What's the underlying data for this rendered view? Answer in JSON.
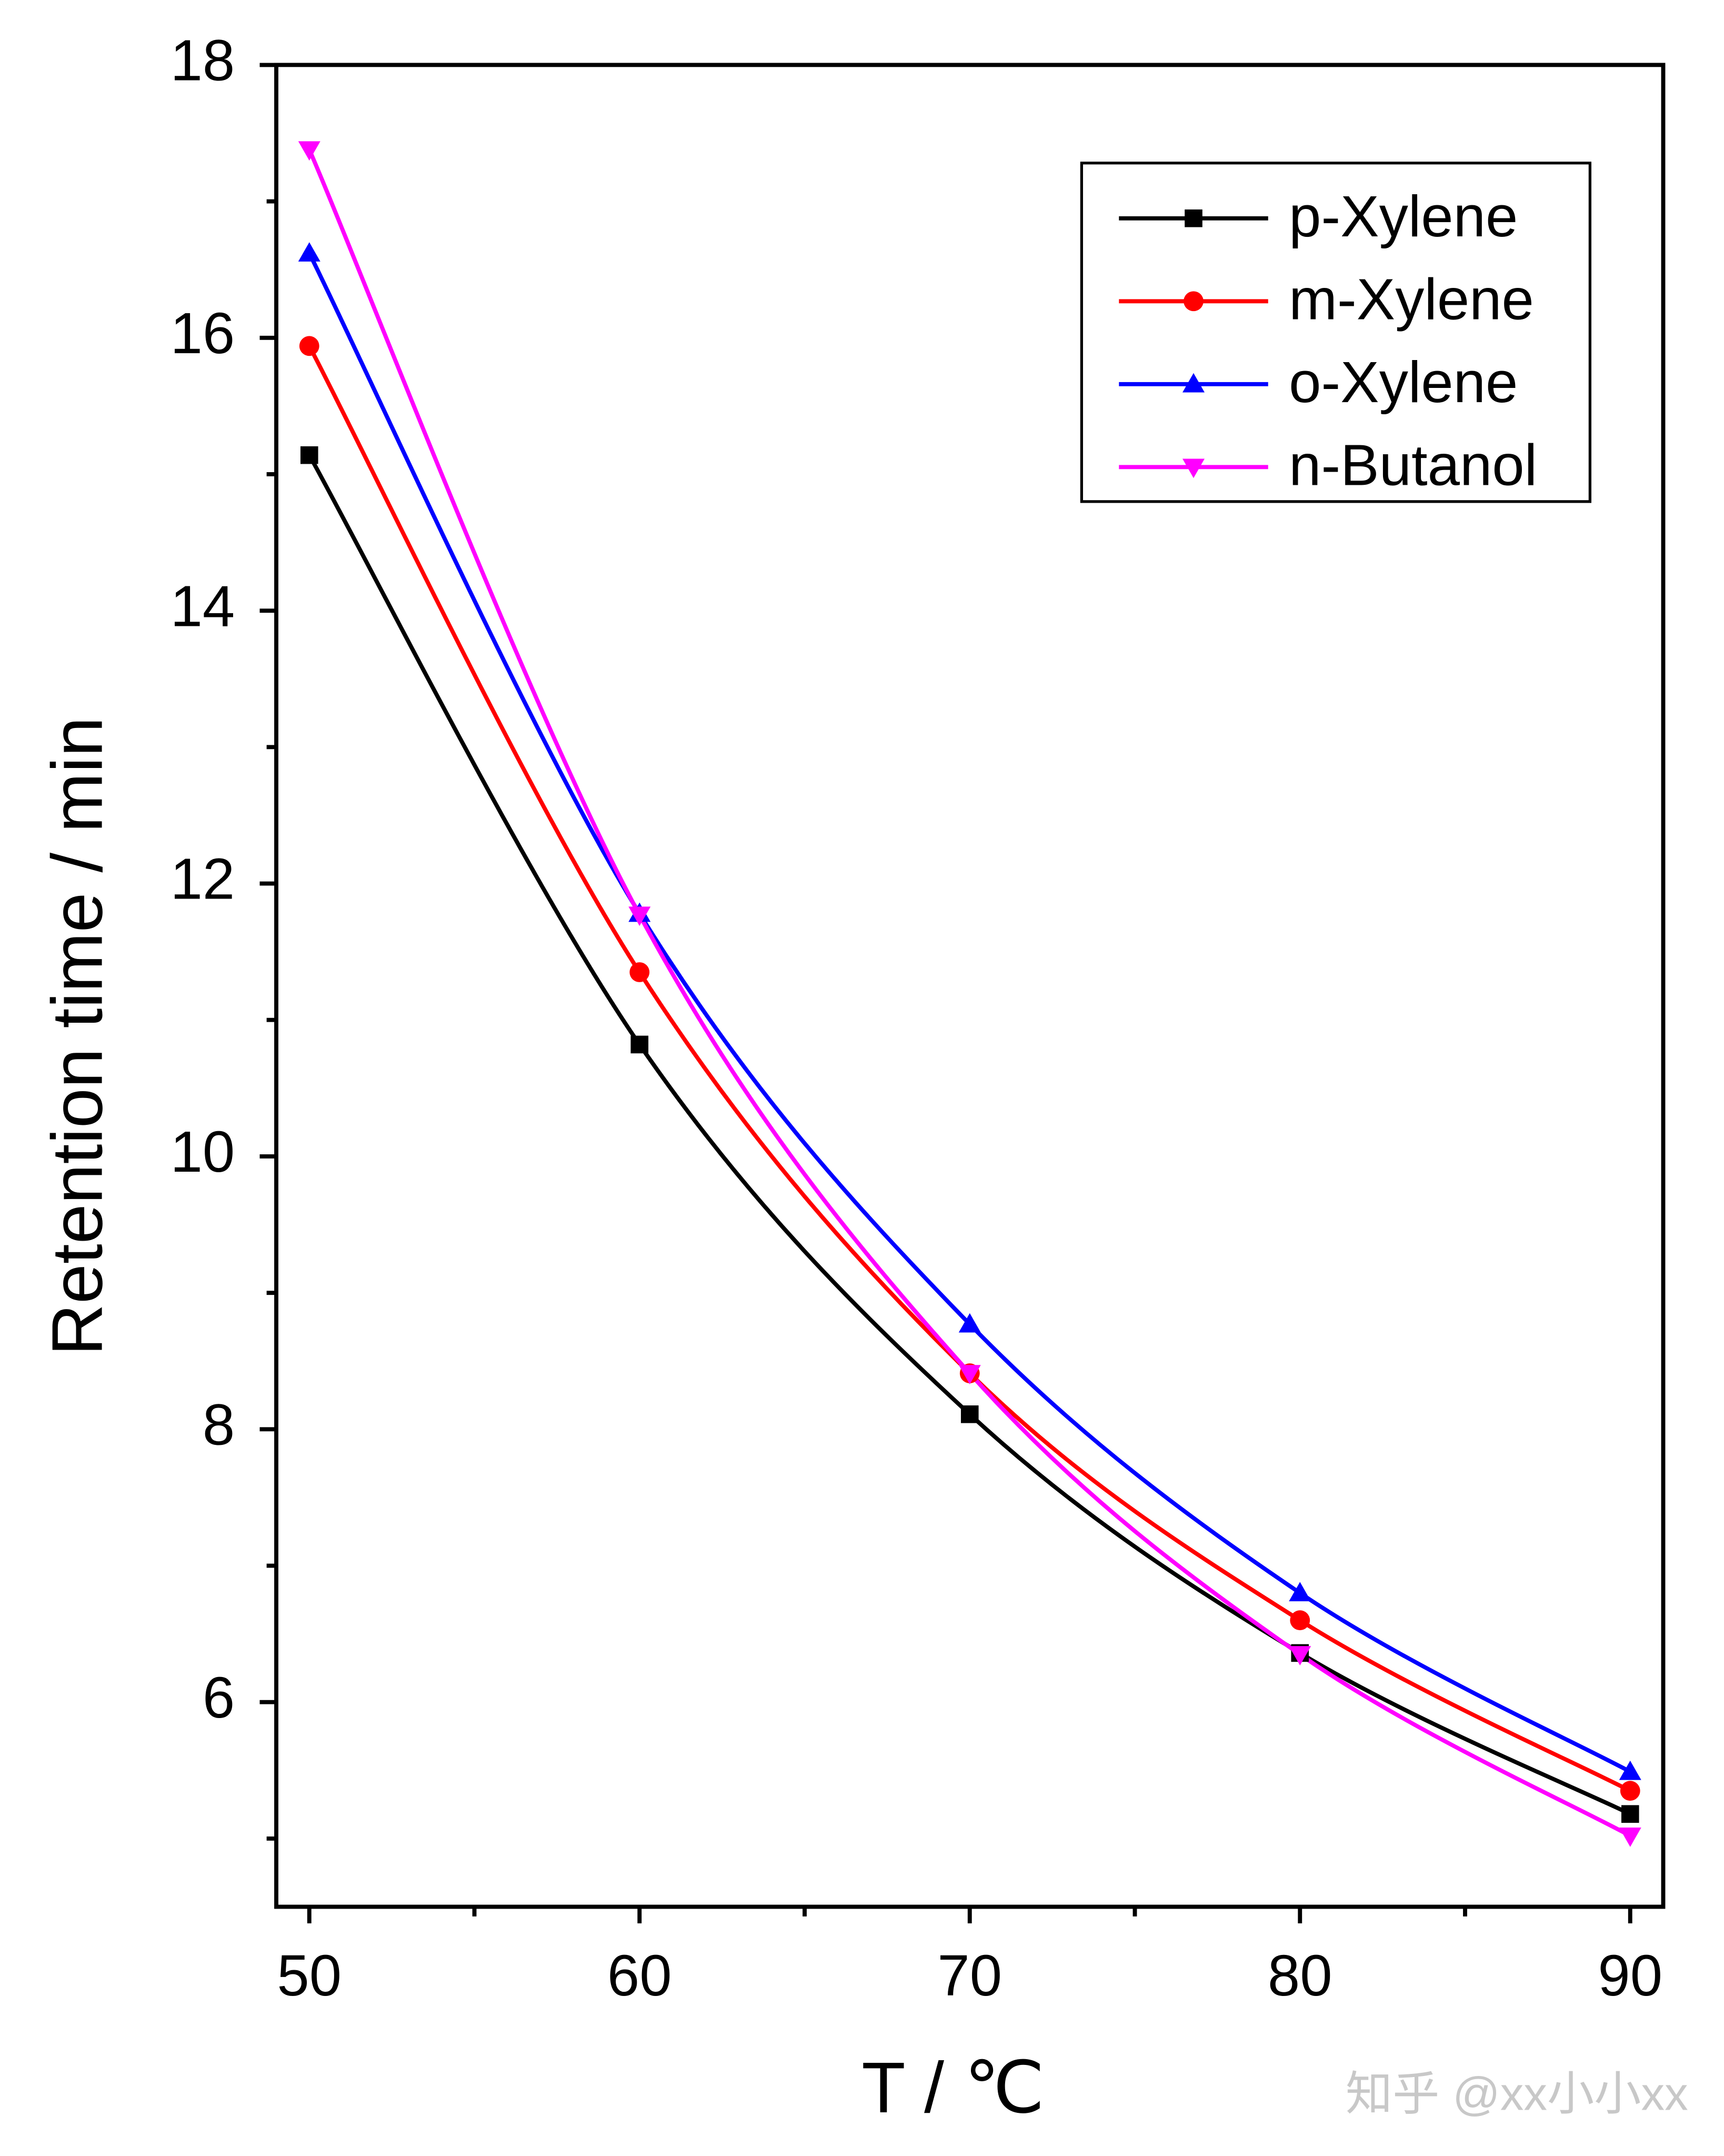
{
  "chart_data": {
    "type": "line",
    "x_label": "T / ℃",
    "y_label": "Retention time / min",
    "watermark": "知乎 @xx小小xx",
    "x": [
      50,
      60,
      70,
      80,
      90
    ],
    "xlim": [
      49,
      91
    ],
    "ylim": [
      4.5,
      18
    ],
    "xticks": [
      50,
      60,
      70,
      80,
      90
    ],
    "yticks": [
      6,
      8,
      10,
      12,
      14,
      16,
      18
    ],
    "x_minor_ticks": [
      55,
      65,
      75,
      85
    ],
    "y_minor_ticks": [
      5,
      7,
      9,
      11,
      13,
      15,
      17
    ],
    "legend": "upper right",
    "series": [
      {
        "name": "p-Xylene",
        "color": "#000000",
        "marker": "square",
        "values": [
          15.14,
          10.82,
          8.11,
          6.36,
          5.18
        ]
      },
      {
        "name": "m-Xylene",
        "color": "#ff0000",
        "marker": "circle",
        "values": [
          15.94,
          11.35,
          8.41,
          6.6,
          5.35
        ]
      },
      {
        "name": "o-Xylene",
        "color": "#0000ff",
        "marker": "triangle-up",
        "values": [
          16.62,
          11.78,
          8.77,
          6.8,
          5.49
        ]
      },
      {
        "name": "n-Butanol",
        "color": "#ff00ff",
        "marker": "triangle-down",
        "values": [
          17.38,
          11.77,
          8.41,
          6.35,
          5.02
        ]
      }
    ]
  }
}
